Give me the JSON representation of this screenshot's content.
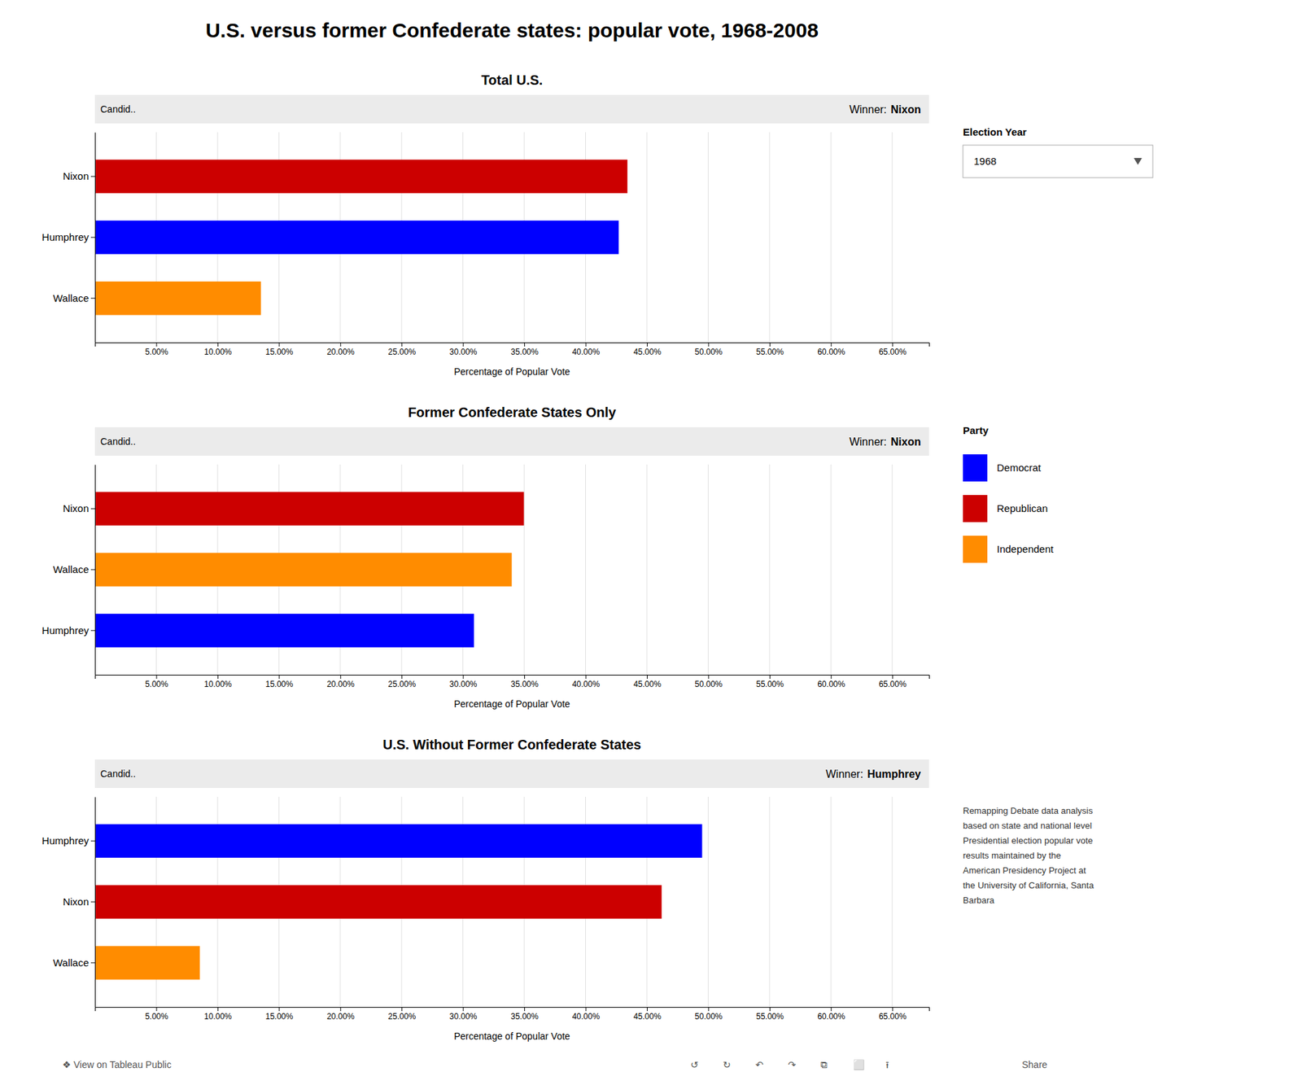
{
  "title": "U.S. versus former Confederate states: popular vote, 1968-2008",
  "chart_data": [
    {
      "type": "bar",
      "orientation": "horizontal",
      "subtitle": "Total U.S.",
      "categories": [
        "Nixon",
        "Humphrey",
        "Wallace"
      ],
      "values": [
        0.4341,
        0.427,
        0.1353
      ],
      "colors": [
        "#cc0000",
        "#0000ff",
        "#ff8c00"
      ],
      "xlim": [
        0,
        0.68
      ],
      "xticks": [
        {
          "value": 0.05,
          "label": "5.00%"
        },
        {
          "value": 0.1,
          "label": "10.00%"
        },
        {
          "value": 0.15,
          "label": "15.00%"
        },
        {
          "value": 0.2,
          "label": "20.00%"
        },
        {
          "value": 0.25,
          "label": "25.00%"
        },
        {
          "value": 0.3,
          "label": "30.00%"
        },
        {
          "value": 0.35,
          "label": "35.00%"
        },
        {
          "value": 0.4,
          "label": "40.00%"
        },
        {
          "value": 0.45,
          "label": "45.00%"
        },
        {
          "value": 0.5,
          "label": "50.00%"
        },
        {
          "value": 0.55,
          "label": "55.00%"
        },
        {
          "value": 0.6,
          "label": "60.00%"
        },
        {
          "value": 0.65,
          "label": "65.00%"
        }
      ],
      "xlabel": "Percentage of Popular Vote",
      "grid": true,
      "annotations": [
        "Candid..",
        "Winner: ",
        "Nixon"
      ]
    },
    {
      "type": "bar",
      "orientation": "horizontal",
      "subtitle": "Former Confederate States Only",
      "categories": [
        "Nixon",
        "Wallace",
        "Humphrey"
      ],
      "values": [
        0.3497,
        0.3398,
        0.309
      ],
      "colors": [
        "#cc0000",
        "#ff8c00",
        "#0000ff"
      ],
      "xlim": [
        0,
        0.68
      ],
      "xticks": [
        {
          "value": 0.05,
          "label": "5.00%"
        },
        {
          "value": 0.1,
          "label": "10.00%"
        },
        {
          "value": 0.15,
          "label": "15.00%"
        },
        {
          "value": 0.2,
          "label": "20.00%"
        },
        {
          "value": 0.25,
          "label": "25.00%"
        },
        {
          "value": 0.3,
          "label": "30.00%"
        },
        {
          "value": 0.35,
          "label": "35.00%"
        },
        {
          "value": 0.4,
          "label": "40.00%"
        },
        {
          "value": 0.45,
          "label": "45.00%"
        },
        {
          "value": 0.5,
          "label": "50.00%"
        },
        {
          "value": 0.55,
          "label": "55.00%"
        },
        {
          "value": 0.6,
          "label": "60.00%"
        },
        {
          "value": 0.65,
          "label": "65.00%"
        }
      ],
      "xlabel": "Percentage of Popular Vote",
      "grid": true,
      "annotations": [
        "Candid..",
        "Winner: ",
        "Nixon"
      ]
    },
    {
      "type": "bar",
      "orientation": "horizontal",
      "subtitle": "U.S. Without Former Confederate States",
      "categories": [
        "Humphrey",
        "Nixon",
        "Wallace"
      ],
      "values": [
        0.495,
        0.462,
        0.0855
      ],
      "colors": [
        "#0000ff",
        "#cc0000",
        "#ff8c00"
      ],
      "xlim": [
        0,
        0.68
      ],
      "xticks": [
        {
          "value": 0.05,
          "label": "5.00%"
        },
        {
          "value": 0.1,
          "label": "10.00%"
        },
        {
          "value": 0.15,
          "label": "15.00%"
        },
        {
          "value": 0.2,
          "label": "20.00%"
        },
        {
          "value": 0.25,
          "label": "25.00%"
        },
        {
          "value": 0.3,
          "label": "30.00%"
        },
        {
          "value": 0.35,
          "label": "35.00%"
        },
        {
          "value": 0.4,
          "label": "40.00%"
        },
        {
          "value": 0.45,
          "label": "45.00%"
        },
        {
          "value": 0.5,
          "label": "50.00%"
        },
        {
          "value": 0.55,
          "label": "55.00%"
        },
        {
          "value": 0.6,
          "label": "60.00%"
        },
        {
          "value": 0.65,
          "label": "65.00%"
        }
      ],
      "xlabel": "Percentage of Popular Vote",
      "grid": true,
      "annotations": [
        "Candid..",
        "Winner: ",
        "Humphrey"
      ]
    }
  ],
  "controls": [
    {
      "label": "Election Year",
      "value": "1968"
    }
  ],
  "party_legend": {
    "title": "Party",
    "entries": [
      {
        "name": "Democrat",
        "color": "#0000ff"
      },
      {
        "name": "Republican",
        "color": "#cc0000"
      },
      {
        "name": "Independent",
        "color": "#ff8c00"
      }
    ]
  },
  "source": "Remapping Debate data analysis\nbased on state and national level\nPresidential election popular vote\nresults maintained by the\nAmerican Presidency Project at\nthe University of California, Santa\nBarbara",
  "footer": [
    "❖ View on Tableau Public",
    "↺",
    "↻",
    "↶",
    "↷",
    "⧉",
    "⬜",
    "⭱",
    "Share"
  ]
}
